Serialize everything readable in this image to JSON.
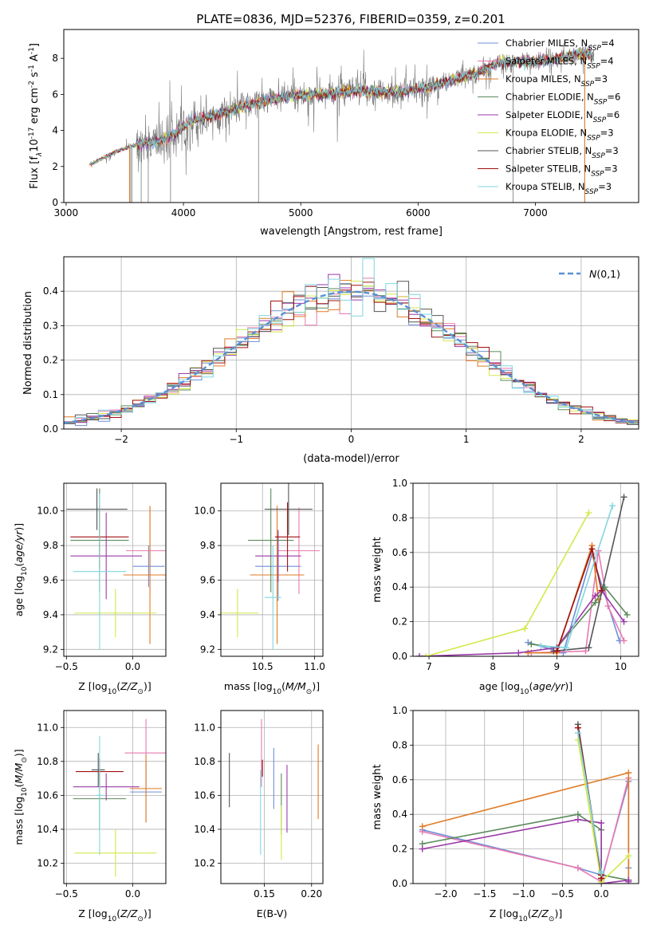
{
  "title": "PLATE=0836, MJD=52376, FIBERID=0359, z=0.201",
  "models": [
    {
      "name": "Chabrier MILES",
      "nssp": "4",
      "color": "#6f8fd8"
    },
    {
      "name": "Salpeter MILES",
      "nssp": "4",
      "color": "#e879b0"
    },
    {
      "name": "Kroupa MILES",
      "nssp": "3",
      "color": "#e07b24"
    },
    {
      "name": "Chabrier ELODIE",
      "nssp": "6",
      "color": "#5a8a5a"
    },
    {
      "name": "Salpeter ELODIE",
      "nssp": "6",
      "color": "#9a3aa8"
    },
    {
      "name": "Kroupa ELODIE",
      "nssp": "3",
      "color": "#d4e84a"
    },
    {
      "name": "Chabrier STELIB",
      "nssp": "3",
      "color": "#555555"
    },
    {
      "name": "Salpeter STELIB",
      "nssp": "3",
      "color": "#a01010"
    },
    {
      "name": "Kroupa STELIB",
      "nssp": "3",
      "color": "#7fd6e0"
    }
  ],
  "nssp_label": "N",
  "nssp_sub": "SSP",
  "chart_data": [
    {
      "type": "line",
      "id": "spectrum",
      "title": "PLATE=0836, MJD=52376, FIBERID=0359, z=0.201",
      "xlabel": "wavelength [Angstrom, rest frame]",
      "ylabel_parts": [
        "Flux [f",
        "λ",
        "10",
        "-17",
        " erg cm",
        "-2",
        " s",
        "-1",
        " A",
        "-1",
        "]"
      ],
      "xlim": [
        2980,
        7880
      ],
      "ylim": [
        0,
        9.6
      ],
      "xticks": [
        3000,
        4000,
        5000,
        6000,
        7000
      ],
      "yticks": [
        0,
        2,
        4,
        6,
        8
      ],
      "continuum_knots": [
        [
          3200,
          2.1
        ],
        [
          3450,
          2.9
        ],
        [
          3600,
          3.2
        ],
        [
          3800,
          3.4
        ],
        [
          3950,
          3.9
        ],
        [
          4050,
          4.5
        ],
        [
          4300,
          4.9
        ],
        [
          4600,
          5.5
        ],
        [
          4900,
          5.9
        ],
        [
          5200,
          6.0
        ],
        [
          5500,
          6.2
        ],
        [
          5800,
          6.1
        ],
        [
          6100,
          6.4
        ],
        [
          6500,
          7.2
        ],
        [
          6700,
          7.8
        ],
        [
          7000,
          7.8
        ],
        [
          7200,
          8.0
        ],
        [
          7400,
          8.3
        ],
        [
          7500,
          8.1
        ]
      ]
    },
    {
      "type": "bar",
      "id": "residuals",
      "xlabel": "(data-model)/error",
      "ylabel": "Normed distribution",
      "xlim": [
        -2.5,
        2.5
      ],
      "ylim": [
        0,
        0.5
      ],
      "xticks": [
        -2,
        -1,
        0,
        1,
        2
      ],
      "yticks": [
        0,
        0.1,
        0.2,
        0.3,
        0.4
      ],
      "bin_width": 0.1,
      "gaussian_label": "N(0,1)"
    },
    {
      "type": "scatter",
      "id": "age-vs-Z",
      "xlabel": "Z [log10(Z/Z⊙)]",
      "ylabel": "age [log10(age/yr)]",
      "xlim": [
        -0.52,
        0.25
      ],
      "ylim": [
        9.16,
        10.16
      ],
      "xticks": [
        -0.5,
        0.0
      ],
      "xticklabels": [
        "−0.5",
        "0.0"
      ],
      "yticks": [
        9.2,
        9.4,
        9.6,
        9.8,
        10.0
      ],
      "points": [
        {
          "model": 0,
          "x": 0.12,
          "y": 9.68,
          "xerr": 0.12,
          "yerr": 0.12
        },
        {
          "model": 1,
          "x": 0.13,
          "y": 9.77,
          "xerr": 0.18,
          "yerr": 0.25
        },
        {
          "model": 2,
          "x": 0.13,
          "y": 9.63,
          "xerr": 0.2,
          "yerr": 0.4
        },
        {
          "model": 3,
          "x": -0.25,
          "y": 9.83,
          "xerr": 0.22,
          "yerr": 0.3
        },
        {
          "model": 4,
          "x": -0.2,
          "y": 9.74,
          "xerr": 0.27,
          "yerr": 0.25
        },
        {
          "model": 5,
          "x": -0.13,
          "y": 9.41,
          "xerr": 0.31,
          "yerr": 0.14
        },
        {
          "model": 6,
          "x": -0.27,
          "y": 10.01,
          "xerr": 0.23,
          "yerr": 0.12
        },
        {
          "model": 7,
          "x": -0.25,
          "y": 9.85,
          "xerr": 0.22,
          "yerr": 0.18
        },
        {
          "model": 8,
          "x": -0.25,
          "y": 9.65,
          "xerr": 0.2,
          "yerr": 0.45
        }
      ]
    },
    {
      "type": "scatter",
      "id": "age-vs-mass",
      "xlabel": "mass [log10(M/M⊙)]",
      "xlim": [
        10.1,
        11.08
      ],
      "ylim": [
        9.16,
        10.16
      ],
      "xticks": [
        10.5,
        11.0
      ],
      "xticklabels": [
        "10.5",
        "11.0"
      ],
      "yticks": [
        9.2,
        9.4,
        9.6,
        9.8,
        10.0
      ],
      "points": [
        {
          "model": 0,
          "x": 10.65,
          "y": 9.68,
          "xerr": 0.22,
          "yerr": 0.2
        },
        {
          "model": 1,
          "x": 10.85,
          "y": 9.77,
          "xerr": 0.2,
          "yerr": 0.25
        },
        {
          "model": 2,
          "x": 10.64,
          "y": 9.63,
          "xerr": 0.26,
          "yerr": 0.4
        },
        {
          "model": 3,
          "x": 10.58,
          "y": 9.83,
          "xerr": 0.22,
          "yerr": 0.3
        },
        {
          "model": 4,
          "x": 10.65,
          "y": 9.74,
          "xerr": 0.22,
          "yerr": 0.15
        },
        {
          "model": 5,
          "x": 10.26,
          "y": 9.41,
          "xerr": 0.2,
          "yerr": 0.14
        },
        {
          "model": 6,
          "x": 10.75,
          "y": 10.01,
          "xerr": 0.23,
          "yerr": 0.15
        },
        {
          "model": 7,
          "x": 10.74,
          "y": 9.85,
          "xerr": 0.12,
          "yerr": 0.2
        },
        {
          "model": 8,
          "x": 10.6,
          "y": 9.5,
          "xerr": 0.08,
          "yerr": 0.3
        }
      ]
    },
    {
      "type": "line",
      "id": "massweight-vs-age",
      "xlabel": "age [log10(age/yr)]",
      "ylabel": "mass weight",
      "xlim": [
        6.75,
        10.28
      ],
      "ylim": [
        0,
        1
      ],
      "xticks": [
        7,
        8,
        9,
        10
      ],
      "yticks": [
        0,
        0.2,
        0.4,
        0.6,
        0.8,
        1.0
      ],
      "series": [
        {
          "model": 0,
          "x": [
            8.55,
            9.1,
            9.55,
            9.98
          ],
          "y": [
            0.08,
            0.02,
            0.59,
            0.09
          ]
        },
        {
          "model": 1,
          "x": [
            8.6,
            9.45,
            9.65,
            9.8,
            10.05
          ],
          "y": [
            0.02,
            0.03,
            0.61,
            0.29,
            0.09
          ]
        },
        {
          "model": 2,
          "x": [
            8.55,
            9.0,
            9.55,
            9.65
          ],
          "y": [
            0.02,
            0.02,
            0.64,
            0.33
          ]
        },
        {
          "model": 3,
          "x": [
            8.6,
            9.0,
            9.6,
            9.75,
            10.1
          ],
          "y": [
            0.07,
            0.05,
            0.31,
            0.4,
            0.24
          ]
        },
        {
          "model": 4,
          "x": [
            6.85,
            8.4,
            9.0,
            9.6,
            9.7,
            10.05
          ],
          "y": [
            0.0,
            0.02,
            0.05,
            0.35,
            0.38,
            0.2
          ]
        },
        {
          "model": 5,
          "x": [
            6.95,
            8.5,
            9.5
          ],
          "y": [
            0.0,
            0.16,
            0.83
          ]
        },
        {
          "model": 6,
          "x": [
            8.95,
            9.5,
            10.05
          ],
          "y": [
            0.03,
            0.05,
            0.92
          ]
        },
        {
          "model": 7,
          "x": [
            9.0,
            9.55,
            9.7
          ],
          "y": [
            0.03,
            0.62,
            0.38
          ]
        },
        {
          "model": 8,
          "x": [
            8.75,
            9.15,
            9.87
          ],
          "y": [
            0.06,
            0.05,
            0.87
          ]
        }
      ]
    },
    {
      "type": "scatter",
      "id": "mass-vs-Z",
      "xlabel": "Z [log10(Z/Z⊙)]",
      "ylabel": "mass [log10(M/M⊙)]",
      "xlim": [
        -0.52,
        0.25
      ],
      "ylim": [
        10.08,
        11.1
      ],
      "xticks": [
        -0.5,
        0.0
      ],
      "xticklabels": [
        "−0.5",
        "0.0"
      ],
      "yticks": [
        10.2,
        10.4,
        10.6,
        10.8,
        11.0
      ],
      "points": [
        {
          "model": 0,
          "x": 0.1,
          "y": 10.62,
          "xerr": 0.12,
          "yerr": 0.18
        },
        {
          "model": 1,
          "x": 0.1,
          "y": 10.85,
          "xerr": 0.16,
          "yerr": 0.2
        },
        {
          "model": 2,
          "x": 0.1,
          "y": 10.64,
          "xerr": 0.12,
          "yerr": 0.2
        },
        {
          "model": 3,
          "x": -0.25,
          "y": 10.58,
          "xerr": 0.2,
          "yerr": 0.18
        },
        {
          "model": 4,
          "x": -0.2,
          "y": 10.65,
          "xerr": 0.25,
          "yerr": 0.08
        },
        {
          "model": 5,
          "x": -0.13,
          "y": 10.26,
          "xerr": 0.31,
          "yerr": 0.14
        },
        {
          "model": 6,
          "x": -0.26,
          "y": 10.75,
          "xerr": 0.05,
          "yerr": 0.1
        },
        {
          "model": 7,
          "x": -0.25,
          "y": 10.74,
          "xerr": 0.18,
          "yerr": 0.08
        },
        {
          "model": 8,
          "x": -0.25,
          "y": 10.6,
          "xerr": 0.03,
          "yerr": 0.35
        }
      ]
    },
    {
      "type": "scatter",
      "id": "mass-vs-ebv",
      "xlabel": "E(B-V)",
      "xlim": [
        0.104,
        0.212
      ],
      "ylim": [
        10.08,
        11.1
      ],
      "xticks": [
        0.15,
        0.2
      ],
      "xticklabels": [
        "0.15",
        "0.20"
      ],
      "yticks": [
        10.2,
        10.4,
        10.6,
        10.8,
        11.0
      ],
      "points": [
        {
          "model": 0,
          "x": 0.16,
          "y": 10.7,
          "yerr": 0.18
        },
        {
          "model": 1,
          "x": 0.147,
          "y": 10.85,
          "yerr": 0.2
        },
        {
          "model": 2,
          "x": 0.207,
          "y": 10.68,
          "yerr": 0.22
        },
        {
          "model": 3,
          "x": 0.168,
          "y": 10.55,
          "yerr": 0.18
        },
        {
          "model": 4,
          "x": 0.174,
          "y": 10.58,
          "yerr": 0.2
        },
        {
          "model": 5,
          "x": 0.168,
          "y": 10.38,
          "yerr": 0.16
        },
        {
          "model": 6,
          "x": 0.113,
          "y": 10.69,
          "yerr": 0.16
        },
        {
          "model": 7,
          "x": 0.148,
          "y": 10.76,
          "yerr": 0.05
        },
        {
          "model": 8,
          "x": 0.146,
          "y": 10.5,
          "yerr": 0.25
        }
      ]
    },
    {
      "type": "line",
      "id": "massweight-vs-Z",
      "xlabel": "Z [log10(Z/Z⊙)]",
      "ylabel": "mass weight",
      "xlim": [
        -2.42,
        0.48
      ],
      "ylim": [
        0,
        1
      ],
      "xticks": [
        -2.0,
        -1.5,
        -1.0,
        -0.5,
        0.0
      ],
      "xticklabels": [
        "−2.0",
        "−1.5",
        "−1.0",
        "−0.5",
        "0.0"
      ],
      "yticks": [
        0,
        0.2,
        0.4,
        0.6,
        0.8,
        1.0
      ],
      "series": [
        {
          "model": 0,
          "x": [
            -2.3,
            -0.3,
            0.0,
            0.0,
            0.35,
            0.35
          ],
          "y": [
            0.31,
            0.09,
            0.05,
            0.02,
            0.59,
            0.09
          ]
        },
        {
          "model": 1,
          "x": [
            -2.3,
            -0.3,
            0.0,
            0.35,
            0.35
          ],
          "y": [
            0.3,
            0.09,
            0.01,
            0.61,
            0.02
          ]
        },
        {
          "model": 2,
          "x": [
            -2.3,
            0.35,
            0.35
          ],
          "y": [
            0.33,
            0.64,
            0.02
          ]
        },
        {
          "model": 3,
          "x": [
            -2.3,
            -0.3,
            0.0,
            0.0,
            0.35
          ],
          "y": [
            0.23,
            0.4,
            0.31,
            0.05,
            0.02
          ]
        },
        {
          "model": 4,
          "x": [
            -2.3,
            -0.3,
            0.0,
            0.0,
            0.35,
            0.35
          ],
          "y": [
            0.2,
            0.37,
            0.35,
            0.0,
            0.02,
            0.01
          ]
        },
        {
          "model": 5,
          "x": [
            -0.3,
            0.0,
            0.35
          ],
          "y": [
            0.83,
            0.01,
            0.16
          ]
        },
        {
          "model": 6,
          "x": [
            -0.3,
            0.0,
            0.0
          ],
          "y": [
            0.92,
            0.05,
            0.03
          ]
        },
        {
          "model": 7,
          "x": [
            -0.3,
            0.0,
            0.0
          ],
          "y": [
            0.9,
            0.05,
            0.03
          ]
        },
        {
          "model": 8,
          "x": [
            -0.3,
            0.0,
            0.0
          ],
          "y": [
            0.87,
            0.07,
            0.06
          ]
        }
      ]
    }
  ]
}
